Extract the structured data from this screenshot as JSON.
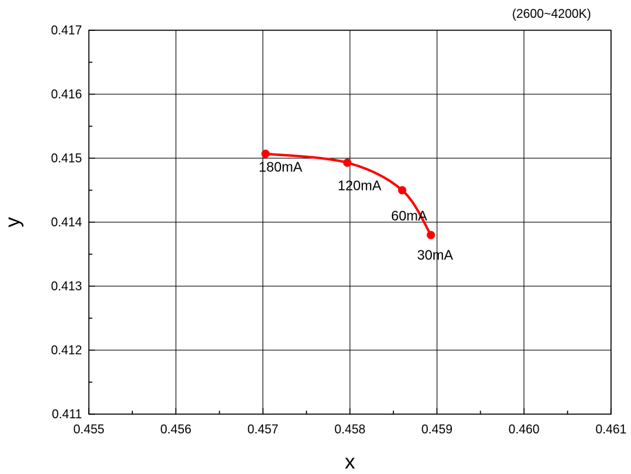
{
  "chart_data": {
    "type": "line",
    "title": "",
    "annotation": "(2600~4200K)",
    "xlabel": "x",
    "ylabel": "y",
    "xlim": [
      0.455,
      0.461
    ],
    "ylim": [
      0.411,
      0.417
    ],
    "x_ticks": [
      "0.455",
      "0.456",
      "0.457",
      "0.458",
      "0.459",
      "0.460",
      "0.461"
    ],
    "y_ticks": [
      "0.411",
      "0.412",
      "0.413",
      "0.414",
      "0.415",
      "0.416",
      "0.417"
    ],
    "grid": true,
    "line_color": "#ff0000",
    "series": [
      {
        "points": [
          {
            "x": 0.45703,
            "y": 0.41507,
            "label": "180mA"
          },
          {
            "x": 0.45797,
            "y": 0.41493,
            "label": "120mA"
          },
          {
            "x": 0.4586,
            "y": 0.4145,
            "label": "60mA"
          },
          {
            "x": 0.45893,
            "y": 0.4138,
            "label": "30mA"
          }
        ]
      }
    ]
  }
}
